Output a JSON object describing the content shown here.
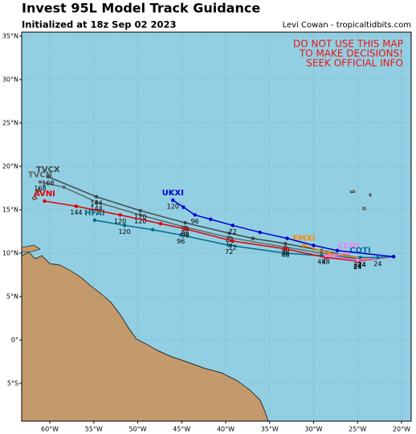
{
  "title": "Invest 95L Model Track Guidance",
  "subtitle": "Initialized at 18z Sep 02 2023",
  "credit": "Levi Cowan - tropicaltidbits.com",
  "warning": [
    "DO NOT USE THIS MAP",
    "TO MAKE DECISIONS!",
    "SEEK OFFICIAL INFO"
  ],
  "chart_data": {
    "type": "map",
    "xlim": [
      -63.2,
      -18.9
    ],
    "ylim": [
      -9.35,
      35.46
    ],
    "xticks": [
      {
        "value": -60,
        "label": "60°W"
      },
      {
        "value": -55,
        "label": "55°W"
      },
      {
        "value": -50,
        "label": "50°W"
      },
      {
        "value": -45,
        "label": "45°W"
      },
      {
        "value": -40,
        "label": "40°W"
      },
      {
        "value": -35,
        "label": "35°W"
      },
      {
        "value": -30,
        "label": "30°W"
      },
      {
        "value": -25,
        "label": "25°W"
      },
      {
        "value": -20,
        "label": "20°W"
      }
    ],
    "yticks": [
      {
        "value": 35,
        "label": "35°N"
      },
      {
        "value": 30,
        "label": "30°N"
      },
      {
        "value": 25,
        "label": "25°N"
      },
      {
        "value": 20,
        "label": "20°N"
      },
      {
        "value": 15,
        "label": "15°N"
      },
      {
        "value": 10,
        "label": "10°N"
      },
      {
        "value": 5,
        "label": "5°N"
      },
      {
        "value": 0,
        "label": "0°"
      },
      {
        "value": -5,
        "label": "5°S"
      }
    ],
    "grid": true,
    "series": [
      {
        "name": "TVCN",
        "color": "#5a6868",
        "x": [
          -20.9,
          -24.5,
          -29.1,
          -33.2,
          -39.6,
          -44.6,
          -49.7,
          -54.7,
          -58.4,
          -61.1
        ],
        "y": [
          9.6,
          9.4,
          10.0,
          10.7,
          11.8,
          13.0,
          14.4,
          15.9,
          17.6,
          18.2
        ],
        "hours": [
          null,
          24,
          null,
          48,
          72,
          96,
          120,
          144,
          null,
          168
        ]
      },
      {
        "name": "TVCX",
        "color": "#3a4848",
        "x": [
          -20.9,
          -24.5,
          -29.1,
          -33.2,
          -36.9,
          -39.6,
          -44.6,
          -49.7,
          -54.7,
          -60.2
        ],
        "y": [
          9.6,
          9.4,
          10.3,
          11.1,
          11.7,
          12.3,
          13.5,
          14.9,
          16.5,
          18.8
        ],
        "hours": [
          null,
          24,
          null,
          48,
          null,
          72,
          96,
          120,
          144,
          168
        ]
      },
      {
        "name": "HFAI",
        "color": "#006b84",
        "x": [
          -20.9,
          -25.0,
          -29.1,
          -33.2,
          -39.6,
          -45.1,
          -48.3,
          -51.5,
          -54.9
        ],
        "y": [
          9.6,
          9.4,
          9.7,
          10.0,
          10.9,
          12.1,
          12.7,
          13.2,
          13.8
        ],
        "hours": [
          null,
          24,
          48,
          null,
          72,
          96,
          null,
          120,
          null
        ]
      },
      {
        "name": "AVNI",
        "color": "#e00000",
        "x": [
          -20.9,
          -25.0,
          -28.6,
          -33.2,
          -39.2,
          -44.6,
          -47.4,
          -52.0,
          -57.0,
          -60.6
        ],
        "y": [
          9.6,
          9.1,
          9.5,
          10.5,
          11.4,
          12.8,
          13.4,
          14.4,
          15.4,
          16.0
        ],
        "hours": [
          null,
          24,
          null,
          48,
          72,
          96,
          null,
          120,
          144,
          null
        ]
      },
      {
        "name": "EMXI",
        "color": "#ff8800",
        "x": [
          -20.9,
          -24.5,
          -28.2,
          -31.1
        ],
        "y": [
          9.6,
          9.4,
          10.0,
          10.9
        ],
        "hours": [
          null,
          24,
          null,
          null
        ]
      },
      {
        "name": "CEMI",
        "color": "#ee82ee",
        "x": [
          -20.9,
          -25.0,
          -28.6,
          -26.0
        ],
        "y": [
          9.6,
          9.2,
          9.7,
          10.0
        ],
        "hours": [
          null,
          24,
          48,
          null
        ]
      },
      {
        "name": "COTI",
        "color": "#0070a0",
        "x": [
          -20.9,
          -22.7,
          -24.7
        ],
        "y": [
          9.6,
          9.5,
          9.5
        ],
        "hours": [
          null,
          24,
          null
        ]
      },
      {
        "name": "UKXI",
        "color": "#0000cc",
        "x": [
          -20.9,
          -27.3,
          -30.0,
          -33.0,
          -36.1,
          -39.2,
          -41.7,
          -43.5,
          -44.8,
          -46.0
        ],
        "y": [
          9.6,
          10.3,
          10.9,
          11.7,
          12.4,
          13.2,
          13.9,
          14.4,
          15.3,
          16.1
        ],
        "hours": [
          null,
          null,
          null,
          null,
          null,
          72,
          null,
          96,
          null,
          120
        ]
      }
    ]
  }
}
